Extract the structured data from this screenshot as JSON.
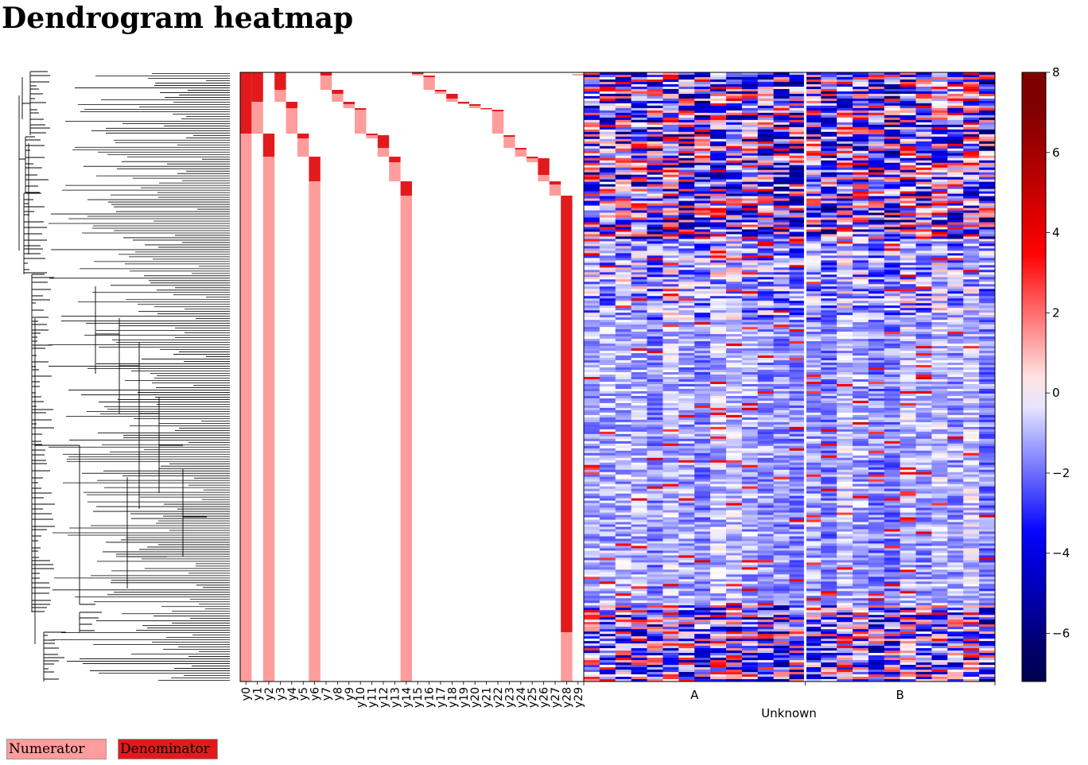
{
  "page": {
    "title": "Dendrogram heatmap"
  },
  "chart_data": {
    "type": "heatmap",
    "title": "Dendrogram heatmap",
    "panels": [
      "dendrogram",
      "balance-membership",
      "heatmap",
      "colorbar"
    ],
    "membership": {
      "columns": [
        "y0",
        "y1",
        "y2",
        "y3",
        "y4",
        "y5",
        "y6",
        "y7",
        "y8",
        "y9",
        "y10",
        "y11",
        "y12",
        "y13",
        "y14",
        "y15",
        "y16",
        "y17",
        "y18",
        "y19",
        "y20",
        "y21",
        "y22",
        "y23",
        "y24",
        "y25",
        "y26",
        "y27",
        "y28",
        "y29"
      ],
      "numerator_color": "#ff9c9c",
      "denominator_color": "#e31a1c",
      "n_rows": 256
    },
    "heatmap": {
      "groups": [
        "A",
        "B"
      ],
      "xlabel": "Unknown",
      "n_columns": 26,
      "n_rows": 256,
      "cmap": "seismic",
      "vmin": -7.2,
      "vmax": 8
    },
    "colorbar": {
      "ticks": [
        8,
        6,
        4,
        2,
        0,
        -2,
        -4,
        -6
      ],
      "tick_labels": [
        "8",
        "6",
        "4",
        "2",
        "0",
        "−2",
        "−4",
        "−6"
      ]
    },
    "legend": {
      "placement": "bottom-left",
      "items": [
        {
          "label": "Numerator",
          "color": "#ff9c9c"
        },
        {
          "label": "Denominator",
          "color": "#e31a1c"
        }
      ]
    }
  }
}
